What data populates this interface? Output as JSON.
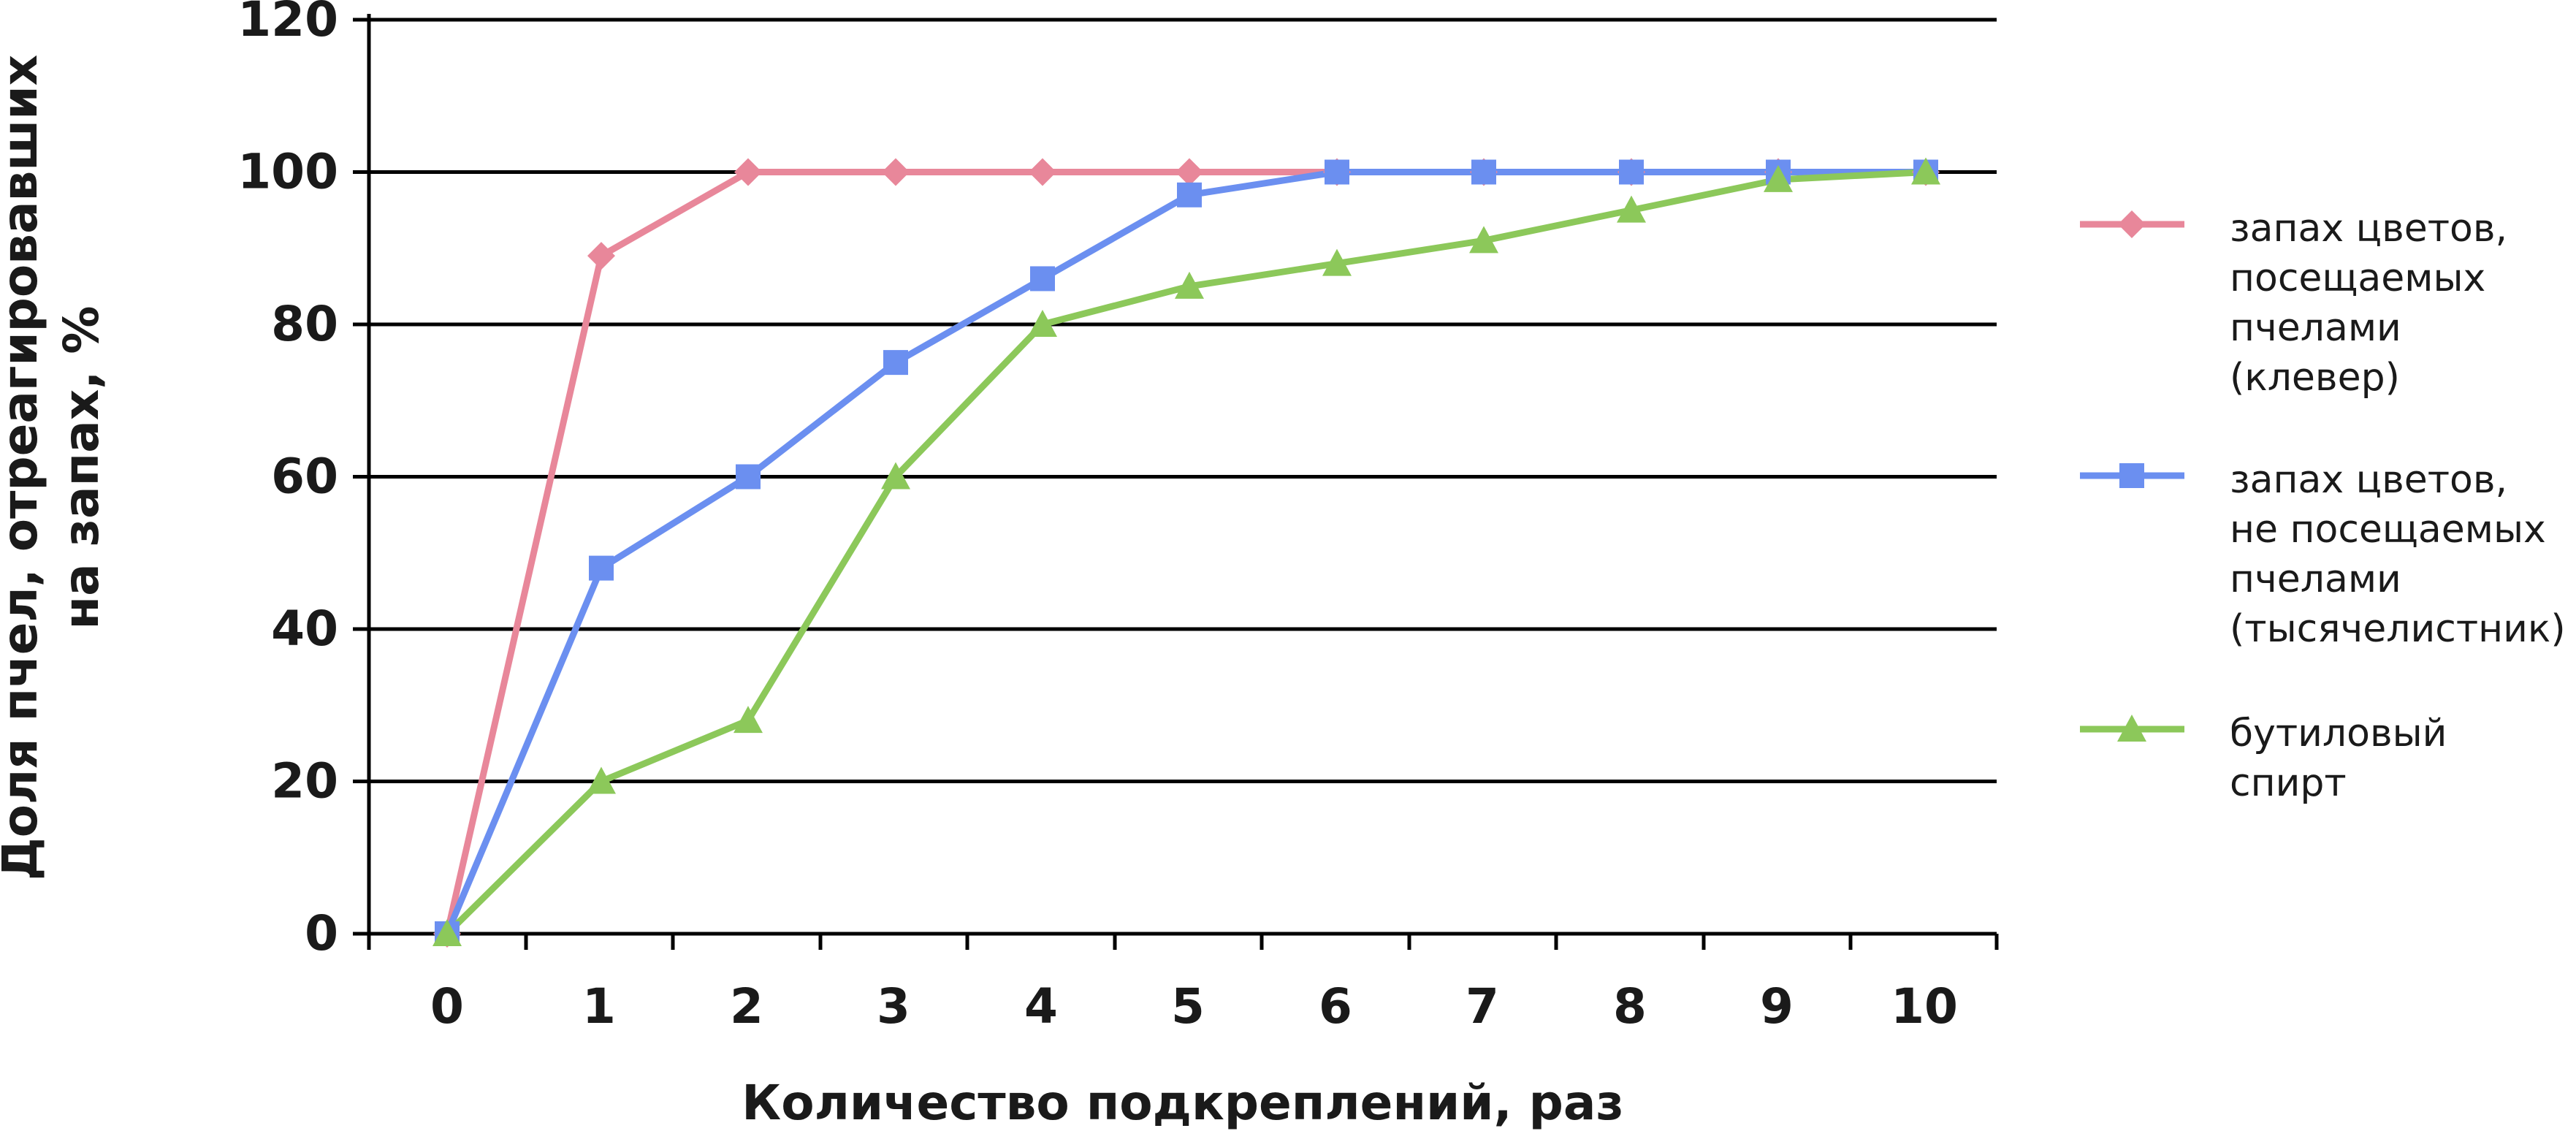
{
  "chart_data": {
    "type": "line",
    "title": "",
    "xlabel": "Количество подкреплений, раз",
    "ylabel": [
      "Доля пчел, отреагировавших",
      "на запах, %"
    ],
    "x": [
      0,
      1,
      2,
      3,
      4,
      5,
      6,
      7,
      8,
      9,
      10
    ],
    "x_tick_labels": [
      "0",
      "1",
      "2",
      "3",
      "4",
      "5",
      "6",
      "7",
      "8",
      "9",
      "10"
    ],
    "ylim": [
      0,
      120
    ],
    "y_tick_labels": [
      "0",
      "20",
      "40",
      "60",
      "80",
      "100",
      "120"
    ],
    "grid": "horizontal",
    "legend_position": "right",
    "series": [
      {
        "name": [
          "запах цветов,",
          "посещаемых",
          "пчелами",
          "(клевер)"
        ],
        "color": "#e8879a",
        "marker": "diamond",
        "values": [
          0,
          89,
          100,
          100,
          100,
          100,
          100,
          100,
          100,
          100,
          100
        ]
      },
      {
        "name": [
          "запах цветов,",
          "не посещаемых",
          "пчелами",
          "(тысячелистник)"
        ],
        "color": "#6b8ff0",
        "marker": "square",
        "values": [
          0,
          48,
          60,
          75,
          86,
          97,
          100,
          100,
          100,
          100,
          100
        ]
      },
      {
        "name": [
          "бутиловый",
          "спирт"
        ],
        "color": "#8cc85a",
        "marker": "triangle",
        "values": [
          0,
          20,
          28,
          60,
          80,
          85,
          88,
          91,
          95,
          99,
          100
        ]
      }
    ]
  }
}
